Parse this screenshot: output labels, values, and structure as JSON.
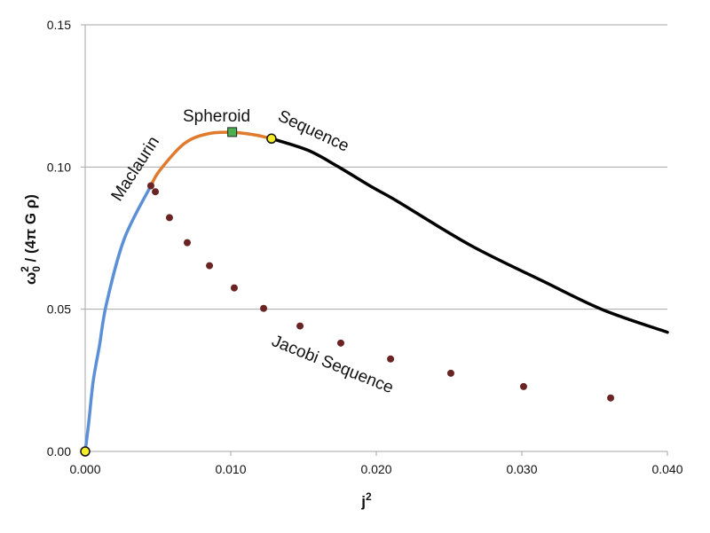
{
  "chart_data": {
    "type": "line",
    "title": "",
    "xlabel": "j",
    "xlabel_sup": "2",
    "ylabel_parts": {
      "omega": "ω",
      "sub": "0",
      "sup": "2",
      "rest": " / (4π G ρ)"
    },
    "xlim": [
      0,
      0.04
    ],
    "ylim": [
      0,
      0.15
    ],
    "x_ticks": [
      0,
      0.01,
      0.02,
      0.03,
      0.04
    ],
    "x_tick_labels": [
      "0.000",
      "0.010",
      "0.020",
      "0.030",
      "0.040"
    ],
    "y_ticks": [
      0,
      0.05,
      0.1,
      0.15
    ],
    "y_tick_labels": [
      "0.00",
      "0.05",
      "0.10",
      "0.15"
    ],
    "grid": "horizontal",
    "legend": "none",
    "series": [
      {
        "color": "#5b8fd6",
        "kind": "line",
        "x": [
          0,
          0.00024,
          0.00055,
          0.00098,
          0.00146,
          0.00268,
          0.00451
        ],
        "y": [
          0,
          0.01,
          0.0247,
          0.0372,
          0.0519,
          0.0747,
          0.0934
        ]
      },
      {
        "color": "#e07a2e",
        "kind": "line",
        "x": [
          0.00451,
          0.00512,
          0.00677,
          0.00835,
          0.01012,
          0.01165,
          0.0128
        ],
        "y": [
          0.0934,
          0.0988,
          0.1081,
          0.1116,
          0.1122,
          0.1113,
          0.11
        ]
      },
      {
        "color": "#000000",
        "kind": "line",
        "x": [
          0.0128,
          0.0153,
          0.01732,
          0.01976,
          0.0214,
          0.02646,
          0.03152,
          0.03561,
          0.04
        ],
        "y": [
          0.11,
          0.1059,
          0.1003,
          0.0928,
          0.0881,
          0.0725,
          0.0597,
          0.0497,
          0.0419
        ]
      },
      {
        "color": "#6b2424",
        "kind": "scatter",
        "x": [
          0.00451,
          0.00482,
          0.00579,
          0.00701,
          0.00854,
          0.01024,
          0.01226,
          0.01476,
          0.01756,
          0.02098,
          0.02512,
          0.03012,
          0.0361
        ],
        "y": [
          0.0934,
          0.0913,
          0.0822,
          0.0734,
          0.0653,
          0.0575,
          0.0503,
          0.0441,
          0.0381,
          0.0325,
          0.0275,
          0.0228,
          0.0188
        ]
      }
    ],
    "markers": [
      {
        "shape": "circle",
        "color": "#f5ec2a",
        "x": 0,
        "y": 0
      },
      {
        "shape": "square",
        "color": "#4caf50",
        "x": 0.0101,
        "y": 0.1123
      },
      {
        "shape": "circle",
        "color": "#f5ec2a",
        "x": 0.0128,
        "y": 0.11
      }
    ],
    "annotations": [
      "Maclaurin",
      "Spheroid",
      "Sequence",
      "Jacobi Sequence"
    ]
  }
}
